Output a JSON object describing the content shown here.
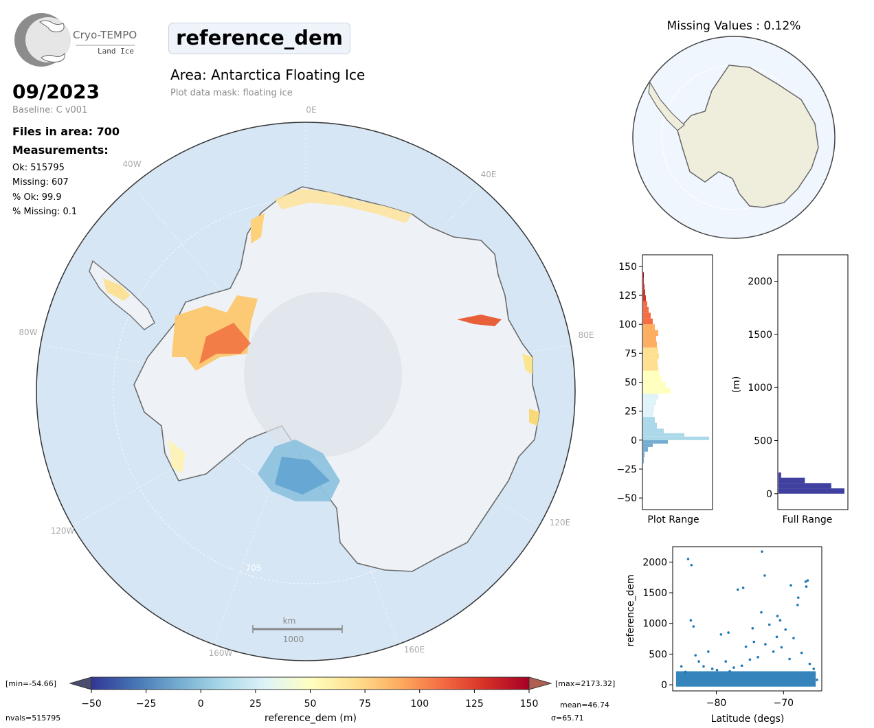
{
  "logo": {
    "name": "Cryo-TEMPO",
    "subtitle": "Land Ice"
  },
  "header": {
    "variable": "reference_dem",
    "area_title": "Area: Antarctica Floating Ice",
    "mask_note": "Plot data mask: floating ice"
  },
  "info": {
    "date": "09/2023",
    "baseline": "Baseline: C v001",
    "files": "Files in area: 700",
    "measurements_title": "Measurements:",
    "ok": "Ok: 515795",
    "missing": "Missing: 607",
    "pct_ok": "% Ok: 99.9",
    "pct_missing": "% Missing: 0.1"
  },
  "map": {
    "lon_labels": [
      "0E",
      "40E",
      "80E",
      "120E",
      "160E",
      "160W",
      "120W",
      "80W",
      "40W"
    ],
    "lat_label": "70S",
    "scalebar_unit": "km",
    "scalebar_value": "1000"
  },
  "missing_map": {
    "title": "Missing Values : 0.12%"
  },
  "colorbar": {
    "label": "reference_dem (m)",
    "ticks": [
      "−50",
      "−25",
      "0",
      "25",
      "50",
      "75",
      "100",
      "125",
      "150"
    ],
    "min_label": "[min=-54.66]",
    "max_label": "[max=2173.32]",
    "nvals": "nvals=515795",
    "mean": "mean=46.74",
    "sigma": "σ=65.71",
    "colors": [
      "#313695",
      "#4575b4",
      "#74add1",
      "#abd9e9",
      "#e0f3f8",
      "#ffffbf",
      "#fee090",
      "#fdae61",
      "#f46d43",
      "#d73027",
      "#a50026"
    ]
  },
  "chart_data": [
    {
      "type": "bar",
      "orientation": "horizontal",
      "xlabel": "Plot Range",
      "ylim": [
        -60,
        160
      ],
      "yticks": [
        "−50",
        "−25",
        "0",
        "25",
        "50",
        "75",
        "100",
        "125",
        "150"
      ],
      "bins": [
        -20,
        -15,
        -10,
        -6,
        -3,
        0,
        3,
        6,
        10,
        15,
        20,
        25,
        30,
        35,
        40,
        45,
        50,
        55,
        60,
        65,
        70,
        75,
        80,
        85,
        90,
        95,
        100,
        105,
        110,
        115,
        120,
        125,
        130,
        135,
        140
      ],
      "values": [
        1,
        2,
        7,
        14,
        36,
        96,
        60,
        30,
        20,
        17,
        15,
        16,
        19,
        22,
        40,
        33,
        27,
        24,
        22,
        21,
        23,
        22,
        20,
        19,
        22,
        17,
        14,
        11,
        8,
        6,
        4,
        3,
        2,
        1,
        1
      ]
    },
    {
      "type": "bar",
      "orientation": "horizontal",
      "xlabel": "Full Range",
      "ylabel": "(m)",
      "ylim": [
        -150,
        2250
      ],
      "yticks": [
        "0",
        "500",
        "1000",
        "1500",
        "2000"
      ],
      "bins": [
        0,
        50,
        100,
        150
      ],
      "values": [
        100,
        80,
        40,
        4
      ],
      "color": "#4040a0"
    },
    {
      "type": "scatter",
      "xlabel": "Latitude (degs)",
      "ylabel": "reference_dem",
      "xlim": [
        -86.5,
        -64.3
      ],
      "ylim": [
        -100,
        2250
      ],
      "xticks": [
        "−80",
        "−70"
      ],
      "yticks": [
        "0",
        "500",
        "1000",
        "1500",
        "2000"
      ],
      "x": [
        -85.2,
        -84.6,
        -83.8,
        -83.4,
        -83.1,
        -82.6,
        -81.9,
        -81.2,
        -80.6,
        -79.9,
        -79.3,
        -78.6,
        -78.0,
        -77.4,
        -76.8,
        -76.2,
        -75.6,
        -75.0,
        -74.4,
        -73.8,
        -73.3,
        -72.7,
        -72.1,
        -71.5,
        -70.9,
        -70.3,
        -69.7,
        -69.1,
        -68.5,
        -67.9,
        -67.3,
        -66.7,
        -66.1,
        -65.5,
        -65.0,
        -84.2,
        -83.7,
        -76.0,
        -73.2,
        -72.8,
        -70.5,
        -68.9,
        -66.6,
        -66.4,
        -78.2,
        -74.6,
        -71.0,
        -67.8
      ],
      "y": [
        300,
        210,
        1050,
        950,
        480,
        380,
        300,
        540,
        260,
        240,
        820,
        380,
        220,
        280,
        1550,
        310,
        620,
        410,
        700,
        450,
        1180,
        660,
        980,
        540,
        1120,
        610,
        900,
        420,
        760,
        1300,
        520,
        1680,
        340,
        260,
        80,
        2050,
        1950,
        1580,
        2170,
        1780,
        1050,
        1620,
        1600,
        1700,
        850,
        920,
        780,
        1420
      ]
    }
  ]
}
